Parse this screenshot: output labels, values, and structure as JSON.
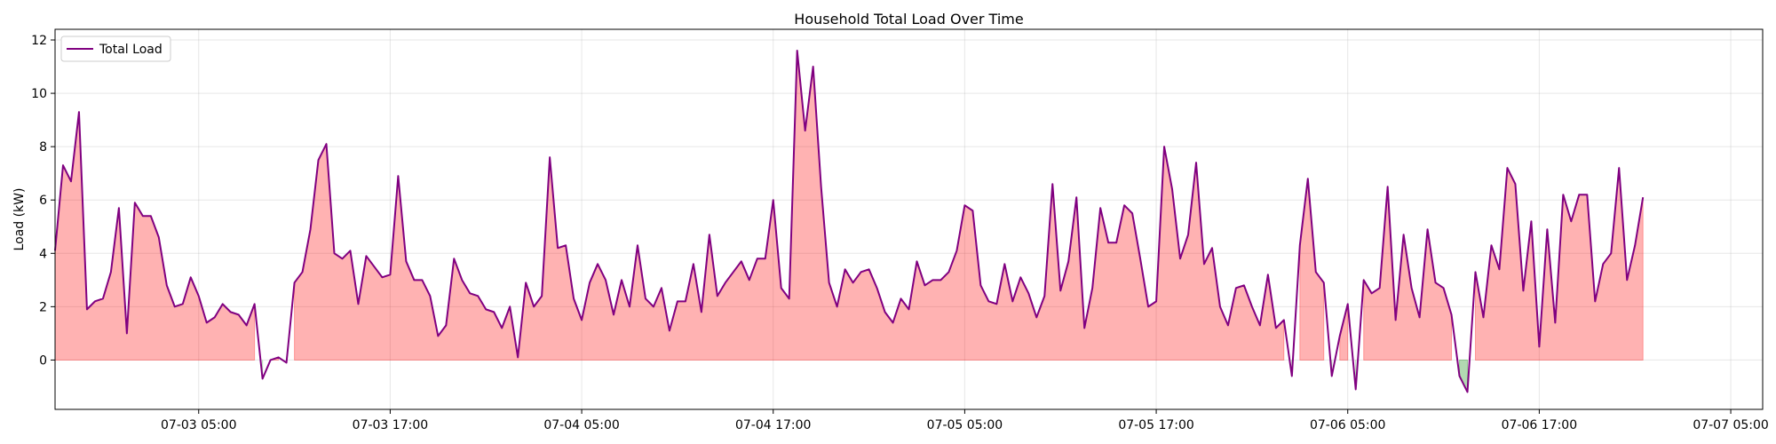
{
  "chart_data": {
    "type": "line",
    "title": "Household Total Load Over Time",
    "xlabel": "",
    "ylabel": "Load (kW)",
    "ylim": [
      -1.85,
      12.4
    ],
    "xlim": [
      "2025-07-02 20:00",
      "2025-07-07 07:00"
    ],
    "grid": true,
    "legend_position": "top-left",
    "x_tick_labels": [
      "07-03 05:00",
      "07-03 17:00",
      "07-04 05:00",
      "07-04 17:00",
      "07-05 05:00",
      "07-05 17:00",
      "07-06 05:00",
      "07-06 17:00",
      "07-07 05:00"
    ],
    "x_ticks": [
      "2025-07-03 05:00",
      "2025-07-03 17:00",
      "2025-07-04 05:00",
      "2025-07-04 17:00",
      "2025-07-05 05:00",
      "2025-07-05 17:00",
      "2025-07-06 05:00",
      "2025-07-06 17:00",
      "2025-07-07 05:00"
    ],
    "y_ticks": [
      0,
      2,
      4,
      6,
      8,
      10,
      12
    ],
    "x_start": "2025-07-02 20:00",
    "x_step_minutes": 30,
    "series": [
      {
        "name": "Total Load",
        "color": "#800080",
        "values": [
          4.1,
          7.3,
          6.7,
          9.3,
          1.9,
          2.2,
          2.3,
          3.3,
          5.7,
          1.0,
          5.9,
          5.4,
          5.4,
          4.6,
          2.8,
          2.0,
          2.1,
          3.1,
          2.4,
          1.4,
          1.6,
          2.1,
          1.8,
          1.7,
          1.3,
          2.1,
          -0.7,
          0.0,
          0.1,
          -0.1,
          2.9,
          3.3,
          4.9,
          7.5,
          8.1,
          4.0,
          3.8,
          4.1,
          2.1,
          3.9,
          3.5,
          3.1,
          3.2,
          6.9,
          3.7,
          3.0,
          3.0,
          2.4,
          0.9,
          1.3,
          3.8,
          3.0,
          2.5,
          2.4,
          1.9,
          1.8,
          1.2,
          2.0,
          0.1,
          2.9,
          2.0,
          2.4,
          7.6,
          4.2,
          4.3,
          2.3,
          1.5,
          2.9,
          3.6,
          3.0,
          1.7,
          3.0,
          2.0,
          4.3,
          2.3,
          2.0,
          2.7,
          1.1,
          2.2,
          2.2,
          3.6,
          1.8,
          4.7,
          2.4,
          2.9,
          3.3,
          3.7,
          3.0,
          3.8,
          3.8,
          6.0,
          2.7,
          2.3,
          11.6,
          8.6,
          11.0,
          6.5,
          2.9,
          2.0,
          3.4,
          2.9,
          3.3,
          3.4,
          2.7,
          1.8,
          1.4,
          2.3,
          1.9,
          3.7,
          2.8,
          3.0,
          3.0,
          3.3,
          4.1,
          5.8,
          5.6,
          2.8,
          2.2,
          2.1,
          3.6,
          2.2,
          3.1,
          2.5,
          1.6,
          2.4,
          6.6,
          2.6,
          3.7,
          6.1,
          1.2,
          2.7,
          5.7,
          4.4,
          4.4,
          5.8,
          5.5,
          3.8,
          2.0,
          2.2,
          8.0,
          6.4,
          3.8,
          4.7,
          7.4,
          3.6,
          4.2,
          2.0,
          1.3,
          2.7,
          2.8,
          2.0,
          1.3,
          3.2,
          1.2,
          1.5,
          -0.6,
          4.3,
          6.8,
          3.3,
          2.9,
          -0.6,
          0.9,
          2.1,
          -1.1,
          3.0,
          2.5,
          2.7,
          6.5,
          1.5,
          4.7,
          2.7,
          1.6,
          4.9,
          2.9,
          2.7,
          1.7,
          -0.6,
          -1.2,
          3.3,
          1.6,
          4.3,
          3.4,
          7.2,
          6.6,
          2.6,
          5.2,
          0.5,
          4.9,
          1.4,
          6.2,
          5.2,
          6.2,
          6.2,
          2.2,
          3.6,
          4.0,
          7.2,
          3.0,
          4.3,
          6.1
        ]
      }
    ],
    "fill_positive_color": "#ff0000",
    "fill_negative_color": "#008000"
  }
}
